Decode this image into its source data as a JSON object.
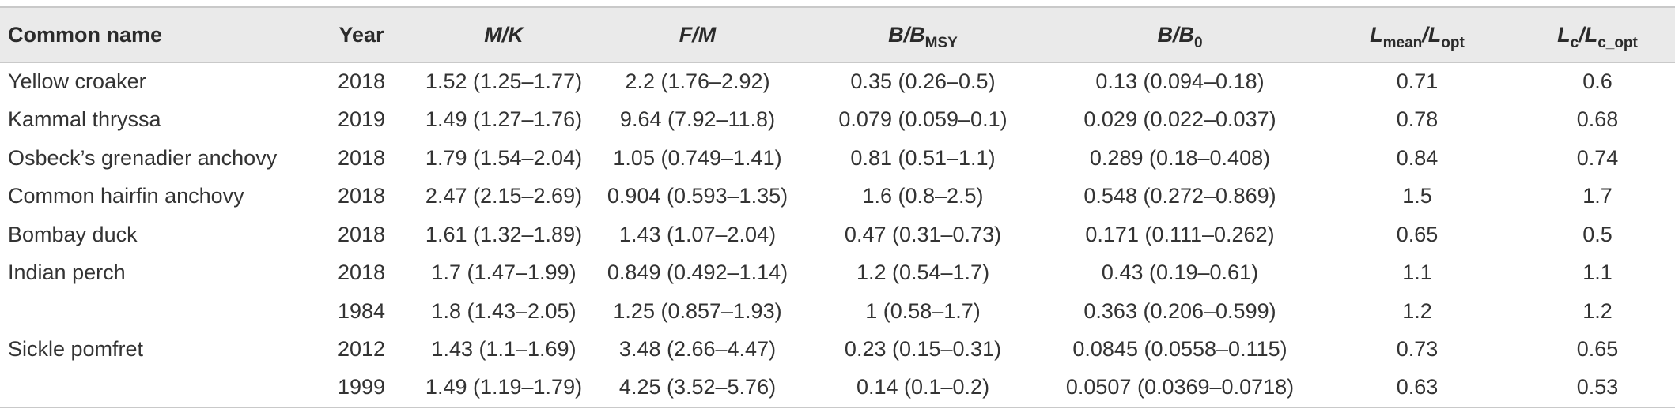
{
  "table": {
    "headers": {
      "common_name": "Common name",
      "year": "Year",
      "mk": "M/K",
      "fm": "F/M",
      "bbmsy_main": "B/B",
      "bbmsy_sub": "MSY",
      "bb0_main": "B/B",
      "bb0_sub": "0",
      "lmean_a": "L",
      "lmean_a_sub": "mean",
      "lmean_b": "/L",
      "lmean_b_sub": "opt",
      "lc_a": "L",
      "lc_a_sub": "c",
      "lc_b": "/L",
      "lc_b_sub": "c_opt"
    },
    "rows": [
      {
        "name": "Yellow croaker",
        "year": "2018",
        "mk": "1.52 (1.25–1.77)",
        "fm": "2.2 (1.76–2.92)",
        "bbmsy": "0.35 (0.26–0.5)",
        "bb0": "0.13 (0.094–0.18)",
        "lmean": "0.71",
        "lc": "0.6"
      },
      {
        "name": "Kammal thryssa",
        "year": "2019",
        "mk": "1.49 (1.27–1.76)",
        "fm": "9.64 (7.92–11.8)",
        "bbmsy": "0.079 (0.059–0.1)",
        "bb0": "0.029 (0.022–0.037)",
        "lmean": "0.78",
        "lc": "0.68"
      },
      {
        "name": "Osbeck’s grenadier anchovy",
        "year": "2018",
        "mk": "1.79 (1.54–2.04)",
        "fm": "1.05 (0.749–1.41)",
        "bbmsy": "0.81 (0.51–1.1)",
        "bb0": "0.289 (0.18–0.408)",
        "lmean": "0.84",
        "lc": "0.74"
      },
      {
        "name": "Common hairfin anchovy",
        "year": "2018",
        "mk": "2.47 (2.15–2.69)",
        "fm": "0.904 (0.593–1.35)",
        "bbmsy": "1.6 (0.8–2.5)",
        "bb0": "0.548 (0.272–0.869)",
        "lmean": "1.5",
        "lc": "1.7"
      },
      {
        "name": "Bombay duck",
        "year": "2018",
        "mk": "1.61 (1.32–1.89)",
        "fm": "1.43 (1.07–2.04)",
        "bbmsy": "0.47 (0.31–0.73)",
        "bb0": "0.171 (0.111–0.262)",
        "lmean": "0.65",
        "lc": "0.5"
      },
      {
        "name": "Indian perch",
        "year": "2018",
        "mk": "1.7 (1.47–1.99)",
        "fm": "0.849 (0.492–1.14)",
        "bbmsy": "1.2 (0.54–1.7)",
        "bb0": "0.43 (0.19–0.61)",
        "lmean": "1.1",
        "lc": "1.1"
      },
      {
        "name": "",
        "year": "1984",
        "mk": "1.8 (1.43–2.05)",
        "fm": "1.25 (0.857–1.93)",
        "bbmsy": "1 (0.58–1.7)",
        "bb0": "0.363 (0.206–0.599)",
        "lmean": "1.2",
        "lc": "1.2"
      },
      {
        "name": "Sickle pomfret",
        "year": "2012",
        "mk": "1.43 (1.1–1.69)",
        "fm": "3.48 (2.66–4.47)",
        "bbmsy": "0.23 (0.15–0.31)",
        "bb0": "0.0845 (0.0558–0.115)",
        "lmean": "0.73",
        "lc": "0.65"
      },
      {
        "name": "",
        "year": "1999",
        "mk": "1.49 (1.19–1.79)",
        "fm": "4.25 (3.52–5.76)",
        "bbmsy": "0.14 (0.1–0.2)",
        "bb0": "0.0507 (0.0369–0.0718)",
        "lmean": "0.63",
        "lc": "0.53"
      }
    ]
  }
}
